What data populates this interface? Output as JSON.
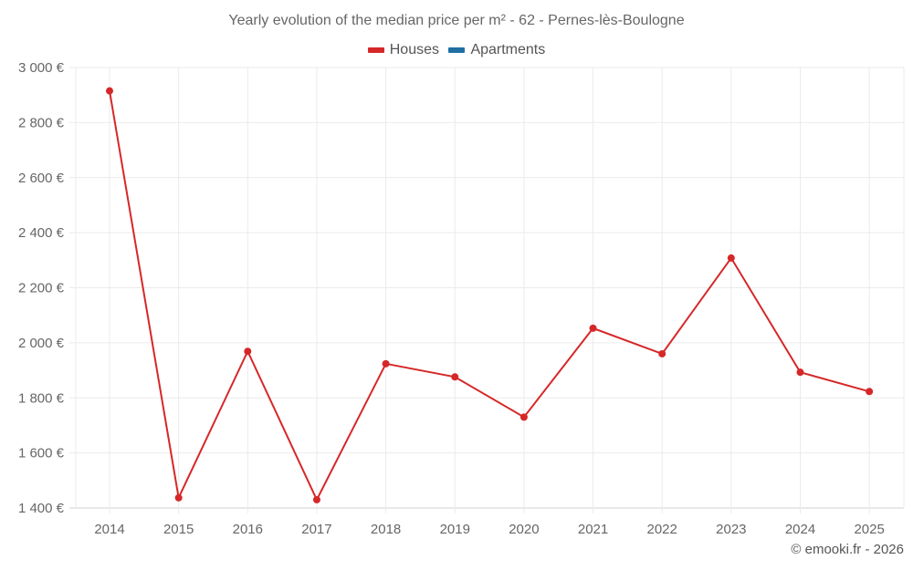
{
  "header": {
    "title": "Yearly evolution of the median price per m² - 62 - Pernes-lès-Boulogne"
  },
  "legend": [
    {
      "label": "Houses",
      "color": "#d62728"
    },
    {
      "label": "Apartments",
      "color": "#1f6fa3"
    }
  ],
  "credit": "© emooki.fr - 2026",
  "chart_data": {
    "type": "line",
    "title": "Yearly evolution of the median price per m² - 62 - Pernes-lès-Boulogne",
    "xlabel": "",
    "ylabel": "",
    "categories": [
      "2014",
      "2015",
      "2016",
      "2017",
      "2018",
      "2019",
      "2020",
      "2021",
      "2022",
      "2023",
      "2024",
      "2025"
    ],
    "series": [
      {
        "name": "Houses",
        "color": "#d62728",
        "values": [
          2915,
          1437,
          1969,
          1430,
          1924,
          1876,
          1730,
          2053,
          1960,
          2308,
          1893,
          1823
        ]
      },
      {
        "name": "Apartments",
        "color": "#1f6fa3",
        "values": []
      }
    ],
    "ylim": [
      1400,
      3000
    ],
    "yticks": [
      1400,
      1600,
      1800,
      2000,
      2200,
      2400,
      2600,
      2800,
      3000
    ],
    "ytick_labels": [
      "1 400 €",
      "1 600 €",
      "1 800 €",
      "2 000 €",
      "2 200 €",
      "2 400 €",
      "2 600 €",
      "2 800 €",
      "3 000 €"
    ],
    "grid": true,
    "legend_position": "top"
  }
}
